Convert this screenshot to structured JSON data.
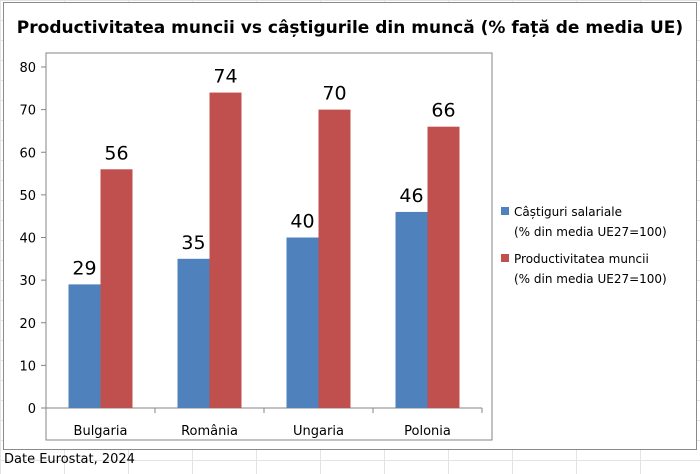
{
  "source_note": "Date Eurostat, 2024",
  "colors": {
    "series1": "#4F81BD",
    "series2": "#C0504D",
    "axis": "#868686",
    "gridline": "#D9D9D9"
  },
  "chart_data": {
    "type": "bar",
    "title": "Productivitatea muncii vs câștigurile din muncă (% față de media UE)",
    "categories": [
      "Bulgaria",
      "România",
      "Ungaria",
      "Polonia"
    ],
    "series": [
      {
        "name": "Câștiguri salariale",
        "name_line2": "(% din media UE27=100)",
        "values": [
          29,
          35,
          40,
          46
        ]
      },
      {
        "name": "Productivitatea muncii",
        "name_line2": "(% din media UE27=100)",
        "values": [
          56,
          74,
          70,
          66
        ]
      }
    ],
    "yticks": [
      0,
      10,
      20,
      30,
      40,
      50,
      60,
      70,
      80
    ],
    "ylim": [
      0,
      80
    ],
    "xlabel": "",
    "ylabel": "",
    "legend_position": "right",
    "grid": false
  }
}
